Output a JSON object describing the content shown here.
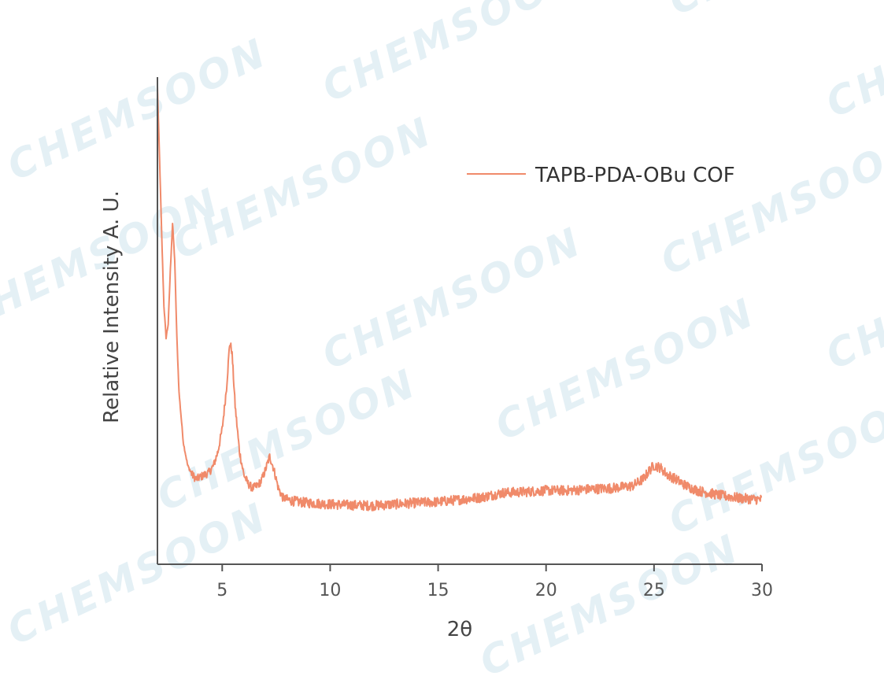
{
  "watermark": "CHEMSOON",
  "chart_data": {
    "type": "line",
    "title": "",
    "xlabel": "2θ",
    "ylabel": "Relative Intensity A. U.",
    "xlim": [
      2,
      30
    ],
    "ylim": [
      0,
      100
    ],
    "xticks": [
      5,
      10,
      15,
      20,
      25,
      30
    ],
    "x_tick_labels": [
      "5",
      "10",
      "15",
      "20",
      "25",
      "30"
    ],
    "y_ticks_shown": false,
    "grid": false,
    "legend_position": "top-right",
    "series": [
      {
        "name": "TAPB-PDA-OBu COF",
        "color": "#f08a6a",
        "points": [
          [
            2.0,
            100.0
          ],
          [
            2.1,
            84.0
          ],
          [
            2.2,
            67.0
          ],
          [
            2.3,
            52.0
          ],
          [
            2.4,
            45.0
          ],
          [
            2.5,
            48.0
          ],
          [
            2.6,
            60.0
          ],
          [
            2.7,
            70.0
          ],
          [
            2.8,
            62.0
          ],
          [
            2.9,
            45.0
          ],
          [
            3.0,
            33.0
          ],
          [
            3.2,
            22.0
          ],
          [
            3.4,
            17.0
          ],
          [
            3.6,
            15.0
          ],
          [
            3.8,
            14.0
          ],
          [
            4.0,
            14.5
          ],
          [
            4.2,
            15.0
          ],
          [
            4.4,
            15.5
          ],
          [
            4.6,
            17.0
          ],
          [
            4.8,
            20.0
          ],
          [
            5.0,
            25.0
          ],
          [
            5.2,
            34.0
          ],
          [
            5.35,
            44.0
          ],
          [
            5.45,
            42.0
          ],
          [
            5.6,
            30.0
          ],
          [
            5.8,
            20.0
          ],
          [
            6.0,
            15.0
          ],
          [
            6.2,
            13.0
          ],
          [
            6.4,
            12.0
          ],
          [
            6.6,
            12.5
          ],
          [
            6.8,
            13.5
          ],
          [
            7.0,
            16.0
          ],
          [
            7.2,
            19.0
          ],
          [
            7.4,
            16.0
          ],
          [
            7.6,
            12.0
          ],
          [
            7.8,
            10.0
          ],
          [
            8.0,
            9.5
          ],
          [
            8.5,
            9.0
          ],
          [
            9.0,
            8.8
          ],
          [
            10.0,
            8.5
          ],
          [
            11.0,
            8.3
          ],
          [
            12.0,
            8.2
          ],
          [
            13.0,
            8.5
          ],
          [
            14.0,
            8.8
          ],
          [
            15.0,
            9.0
          ],
          [
            16.0,
            9.5
          ],
          [
            17.0,
            10.0
          ],
          [
            18.0,
            11.0
          ],
          [
            19.0,
            11.2
          ],
          [
            20.0,
            11.5
          ],
          [
            21.0,
            11.5
          ],
          [
            22.0,
            11.8
          ],
          [
            23.0,
            12.0
          ],
          [
            24.0,
            12.5
          ],
          [
            24.5,
            14.0
          ],
          [
            24.8,
            16.0
          ],
          [
            25.0,
            17.0
          ],
          [
            25.3,
            16.5
          ],
          [
            25.6,
            15.0
          ],
          [
            26.0,
            14.0
          ],
          [
            26.5,
            12.5
          ],
          [
            27.0,
            11.5
          ],
          [
            28.0,
            10.5
          ],
          [
            29.0,
            9.8
          ],
          [
            30.0,
            9.5
          ]
        ]
      }
    ]
  }
}
